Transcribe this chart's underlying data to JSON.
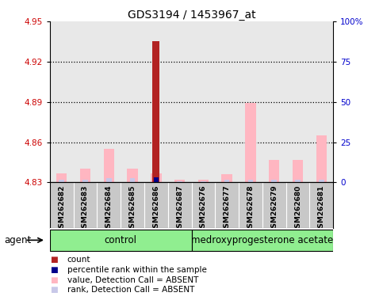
{
  "title": "GDS3194 / 1453967_at",
  "samples": [
    "GSM262682",
    "GSM262683",
    "GSM262684",
    "GSM262685",
    "GSM262686",
    "GSM262687",
    "GSM262676",
    "GSM262677",
    "GSM262678",
    "GSM262679",
    "GSM262680",
    "GSM262681"
  ],
  "ylim_left": [
    4.83,
    4.95
  ],
  "ylim_right": [
    0,
    100
  ],
  "yticks_left": [
    4.83,
    4.86,
    4.89,
    4.92,
    4.95
  ],
  "yticks_right": [
    0,
    25,
    50,
    75,
    100
  ],
  "ytick_labels_left": [
    "4.83",
    "4.86",
    "4.89",
    "4.92",
    "4.95"
  ],
  "ytick_labels_right": [
    "0",
    "25",
    "50",
    "75",
    "100%"
  ],
  "baseline": 4.83,
  "pink_values": [
    4.837,
    4.84,
    4.855,
    4.84,
    4.837,
    4.832,
    4.832,
    4.836,
    4.889,
    4.847,
    4.847,
    4.865
  ],
  "blue_values": [
    4.832,
    4.832,
    4.833,
    4.833,
    4.834,
    4.831,
    4.831,
    4.832,
    4.832,
    4.832,
    4.832,
    4.832
  ],
  "red_values": [
    null,
    null,
    null,
    null,
    4.935,
    null,
    null,
    null,
    null,
    null,
    null,
    null
  ],
  "dark_blue_values": [
    null,
    null,
    null,
    null,
    4.834,
    null,
    null,
    null,
    null,
    null,
    null,
    null
  ],
  "pink_color": "#FFB6C1",
  "lavender_color": "#C8C8E8",
  "red_color": "#B22222",
  "blue_color": "#00008B",
  "axis_bg_color": "#E8E8E8",
  "label_bg_color": "#C8C8C8",
  "red_axis_color": "#CC0000",
  "blue_axis_color": "#0000CC",
  "control_color": "#90EE90",
  "medro_color": "#90EE90",
  "grid_color": "#000000",
  "legend_items": [
    {
      "color": "#B22222",
      "label": "count"
    },
    {
      "color": "#00008B",
      "label": "percentile rank within the sample"
    },
    {
      "color": "#FFB6C1",
      "label": "value, Detection Call = ABSENT"
    },
    {
      "color": "#C8C8E8",
      "label": "rank, Detection Call = ABSENT"
    }
  ]
}
